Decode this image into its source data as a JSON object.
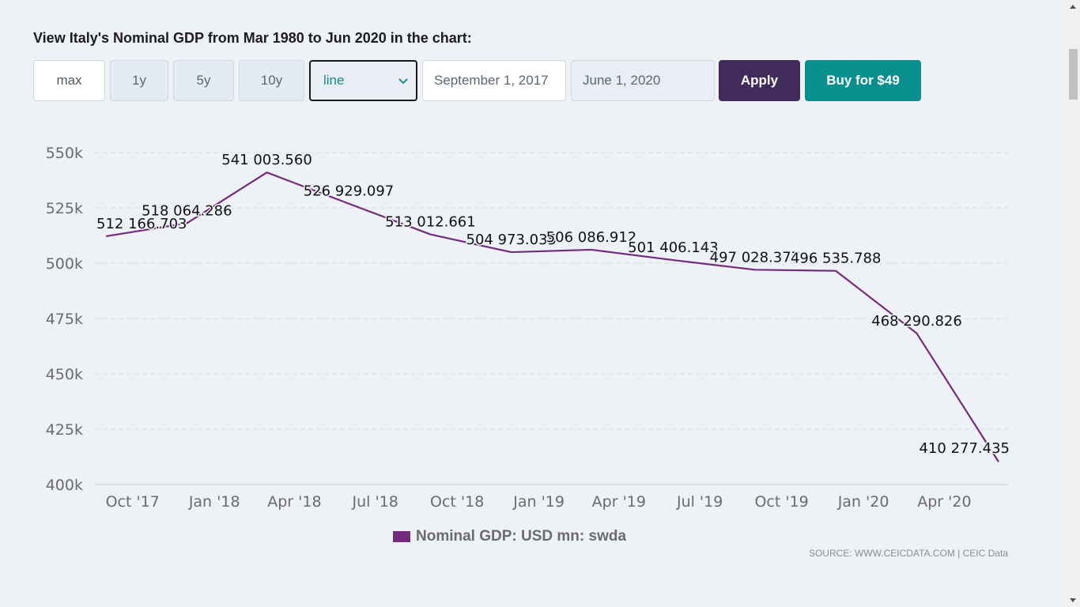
{
  "page": {
    "title": "View Italy's Nominal GDP from Mar 1980 to Jun 2020 in the chart:"
  },
  "controls": {
    "range_buttons": [
      "max",
      "1y",
      "5y",
      "10y"
    ],
    "active_range": "max",
    "chart_type_value": "line",
    "from_date": "September 1, 2017",
    "to_date": "June 1, 2020",
    "apply_label": "Apply",
    "buy_label": "Buy for $49"
  },
  "colors": {
    "series": "#732c7b",
    "apply": "#412b5b",
    "buy": "#0a8f8f"
  },
  "legend": {
    "label": "Nominal GDP: USD mn: swda"
  },
  "source": "SOURCE: WWW.CEICDATA.COM | CEIC Data",
  "chart_data": {
    "type": "line",
    "title": "",
    "xlabel": "",
    "ylabel": "",
    "ylim": [
      400000,
      550000
    ],
    "yticks": [
      400000,
      425000,
      450000,
      475000,
      500000,
      525000,
      550000
    ],
    "ytick_labels": [
      "400k",
      "425k",
      "450k",
      "475k",
      "500k",
      "525k",
      "550k"
    ],
    "xticks": [
      "2017-10-01",
      "2018-01-01",
      "2018-04-01",
      "2018-07-01",
      "2018-10-01",
      "2019-01-01",
      "2019-04-01",
      "2019-07-01",
      "2019-10-01",
      "2020-01-01",
      "2020-04-01"
    ],
    "xtick_labels": [
      "Oct '17",
      "Jan '18",
      "Apr '18",
      "Jul '18",
      "Oct '18",
      "Jan '19",
      "Apr '19",
      "Jul '19",
      "Oct '19",
      "Jan '20",
      "Apr '20"
    ],
    "grid": true,
    "legend_position": "bottom",
    "series": [
      {
        "name": "Nominal GDP: USD mn: swda",
        "x": [
          "2017-09-01",
          "2017-12-01",
          "2018-03-01",
          "2018-06-01",
          "2018-09-01",
          "2018-12-01",
          "2019-03-01",
          "2019-06-01",
          "2019-09-01",
          "2019-12-01",
          "2020-03-01",
          "2020-06-01"
        ],
        "values": [
          512166.703,
          518064.286,
          541003.56,
          526929.097,
          513012.661,
          504973.035,
          506086.912,
          501406.143,
          497028.377,
          496535.788,
          468290.826,
          410277.435
        ],
        "labels": [
          "512 166.703",
          "518 064.286",
          "541 003.560",
          "526 929.097",
          "513 012.661",
          "504 973.035",
          "506 086.912",
          "501 406.143",
          "497 028.377",
          "496 535.788",
          "468 290.826",
          "410 277.435"
        ]
      }
    ]
  }
}
